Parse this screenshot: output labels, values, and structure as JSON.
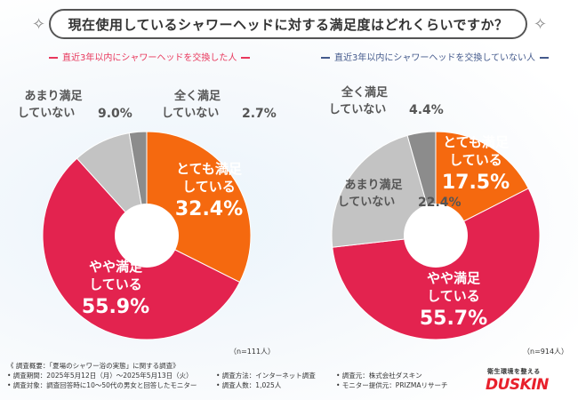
{
  "title": "現在使用しているシャワーヘッドに対する満足度はどれくらいですか？",
  "subtitles": {
    "left": "直近3年以内にシャワーヘッドを交換した人",
    "right": "直近3年以内にシャワーヘッドを交換していない人"
  },
  "colors": {
    "very_satisfied": "#f5690f",
    "somewhat_satisfied": "#e3234f",
    "not_very": "#c3c3c3",
    "not_at_all": "#8c8c8c",
    "left_accent": "#e8375c",
    "right_accent": "#445a8c"
  },
  "chart_data": [
    {
      "type": "pie",
      "variant": "donut",
      "title": "直近3年以内にシャワーヘッドを交換した人",
      "n_label": "（n=111人）",
      "categories": [
        "とても満足している",
        "やや満足している",
        "あまり満足していない",
        "全く満足していない"
      ],
      "values": [
        32.4,
        55.9,
        9.0,
        2.7
      ],
      "value_labels": [
        "32.4%",
        "55.9%",
        "9.0%",
        "2.7%"
      ],
      "start": "top, clockwise"
    },
    {
      "type": "pie",
      "variant": "donut",
      "title": "直近3年以内にシャワーヘッドを交換していない人",
      "n_label": "（n=914人）",
      "categories": [
        "とても満足している",
        "やや満足している",
        "あまり満足していない",
        "全く満足していない"
      ],
      "values": [
        17.5,
        55.7,
        22.4,
        4.4
      ],
      "value_labels": [
        "17.5%",
        "55.7%",
        "22.4%",
        "4.4%"
      ],
      "start": "top, clockwise"
    }
  ],
  "labels": {
    "very_line1": "とても満足",
    "very_line2": "している",
    "somewhat_line1": "やや満足",
    "somewhat_line2": "している",
    "notvery_line1": "あまり満足",
    "notvery_line2": "していない",
    "notatall_line1": "全く満足",
    "notatall_line2": "していない"
  },
  "footer": {
    "overview": "《 調査概要：「夏場のシャワー浴の実態」に関する調査》",
    "period": "• 調査期間：2025年5月12日（月）〜2025年5月13日（火）",
    "method": "• 調査方法：インターネット調査",
    "source": "• 調査元：株式会社ダスキン",
    "target": "• 調査対象：調査回答時に10〜50代の男女と回答したモニター",
    "count": "• 調査人数：1,025人",
    "provider": "• モニター提供元：PRIZMAリサーチ"
  },
  "brand": {
    "tagline": "衛生環境を整える",
    "name": "DUSKIN"
  }
}
